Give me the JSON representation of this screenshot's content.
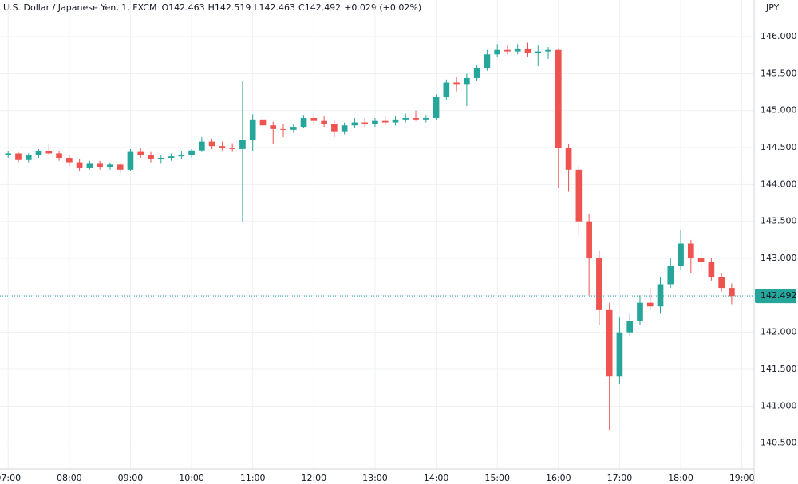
{
  "chart_data": {
    "type": "candlestick",
    "title": "U.S. Dollar / Japanese Yen, 1, FXCM",
    "ohlc_legend": [
      "O142.463",
      "H142.519",
      "L142.463",
      "C142.492",
      "+0.029 (+0.02%)"
    ],
    "currency": "JPY",
    "last_price": {
      "value": 142.492,
      "label": "142.492"
    },
    "up_color": "#26a69a",
    "down_color": "#ef5350",
    "xlim": [
      412,
      1152
    ],
    "xticks": [
      {
        "value": 420,
        "label": "07:00"
      },
      {
        "value": 480,
        "label": "08:00"
      },
      {
        "value": 540,
        "label": "09:00"
      },
      {
        "value": 600,
        "label": "10:00"
      },
      {
        "value": 660,
        "label": "11:00"
      },
      {
        "value": 720,
        "label": "12:00"
      },
      {
        "value": 780,
        "label": "13:00"
      },
      {
        "value": 840,
        "label": "14:00"
      },
      {
        "value": 900,
        "label": "15:00"
      },
      {
        "value": 960,
        "label": "16:00"
      },
      {
        "value": 1020,
        "label": "17:00"
      },
      {
        "value": 1080,
        "label": "18:00"
      },
      {
        "value": 1140,
        "label": "19:00"
      }
    ],
    "ylim": [
      140.151,
      146.497
    ],
    "yticks": [
      {
        "value": 140.5,
        "label": "140.500"
      },
      {
        "value": 141,
        "label": "141.000"
      },
      {
        "value": 141.5,
        "label": "141.500"
      },
      {
        "value": 142,
        "label": "142.000"
      },
      {
        "value": 142.5,
        "label": "142.500"
      },
      {
        "value": 143,
        "label": "143.000"
      },
      {
        "value": 143.5,
        "label": "143.500"
      },
      {
        "value": 144,
        "label": "144.000"
      },
      {
        "value": 144.5,
        "label": "144.500"
      },
      {
        "value": 145,
        "label": "145.000"
      },
      {
        "value": 145.5,
        "label": "145.500"
      },
      {
        "value": 146,
        "label": "146.000"
      }
    ],
    "grid": true,
    "x": [
      420,
      430,
      440,
      450,
      460,
      470,
      480,
      490,
      500,
      510,
      520,
      530,
      540,
      550,
      560,
      570,
      580,
      590,
      600,
      610,
      620,
      630,
      640,
      650,
      660,
      670,
      680,
      690,
      700,
      710,
      720,
      730,
      740,
      750,
      760,
      770,
      780,
      790,
      800,
      810,
      820,
      830,
      840,
      850,
      860,
      870,
      880,
      890,
      900,
      910,
      920,
      930,
      940,
      950,
      960,
      970,
      980,
      990,
      1000,
      1010,
      1020,
      1030,
      1040,
      1050,
      1060,
      1070,
      1080,
      1090,
      1100,
      1110,
      1120,
      1130
    ],
    "open": [
      144.4,
      144.42,
      144.33,
      144.4,
      144.45,
      144.42,
      144.36,
      144.3,
      144.22,
      144.28,
      144.24,
      144.27,
      144.2,
      144.44,
      144.4,
      144.34,
      144.36,
      144.38,
      144.4,
      144.46,
      144.58,
      144.52,
      144.5,
      144.48,
      144.6,
      144.88,
      144.8,
      144.75,
      144.74,
      144.78,
      144.9,
      144.86,
      144.82,
      144.72,
      144.8,
      144.84,
      144.82,
      144.86,
      144.84,
      144.88,
      144.9,
      144.88,
      144.9,
      145.18,
      145.38,
      145.36,
      145.44,
      145.58,
      145.76,
      145.82,
      145.8,
      145.84,
      145.78,
      145.8,
      145.82,
      144.5,
      144.2,
      143.5,
      143.0,
      142.3,
      141.4,
      142.0,
      142.15,
      142.4,
      142.35,
      142.65,
      142.9,
      143.2,
      143.0,
      142.95,
      142.75,
      142.6
    ],
    "high": [
      144.45,
      144.44,
      144.42,
      144.48,
      144.55,
      144.45,
      144.4,
      144.34,
      144.32,
      144.32,
      144.3,
      144.3,
      144.48,
      144.5,
      144.44,
      144.4,
      144.42,
      144.45,
      144.48,
      144.64,
      144.62,
      144.58,
      144.56,
      145.4,
      144.95,
      144.96,
      144.85,
      144.82,
      144.82,
      144.94,
      144.96,
      144.92,
      144.86,
      144.84,
      144.9,
      144.9,
      144.9,
      144.92,
      144.92,
      144.96,
      145.0,
      144.94,
      145.22,
      145.42,
      145.46,
      145.5,
      145.62,
      145.82,
      145.9,
      145.88,
      145.9,
      145.92,
      145.88,
      145.86,
      145.84,
      144.55,
      144.25,
      143.6,
      143.1,
      142.4,
      142.2,
      142.25,
      142.5,
      142.6,
      142.75,
      143.0,
      143.38,
      143.25,
      143.1,
      143.0,
      142.8,
      142.66
    ],
    "low": [
      144.36,
      144.3,
      144.3,
      144.36,
      144.4,
      144.32,
      144.25,
      144.18,
      144.2,
      144.2,
      144.2,
      144.15,
      144.18,
      144.36,
      144.3,
      144.28,
      144.32,
      144.34,
      144.36,
      144.44,
      144.48,
      144.46,
      144.44,
      143.5,
      144.45,
      144.72,
      144.55,
      144.64,
      144.7,
      144.76,
      144.8,
      144.78,
      144.64,
      144.68,
      144.76,
      144.78,
      144.78,
      144.8,
      144.8,
      144.84,
      144.86,
      144.84,
      144.88,
      145.14,
      145.26,
      145.06,
      145.4,
      145.54,
      145.72,
      145.76,
      145.76,
      145.72,
      145.6,
      145.7,
      143.95,
      143.9,
      143.3,
      142.5,
      142.1,
      140.68,
      141.3,
      141.95,
      142.1,
      142.3,
      142.25,
      142.6,
      142.85,
      142.8,
      142.85,
      142.7,
      142.55,
      142.38
    ],
    "close": [
      144.42,
      144.33,
      144.4,
      144.45,
      144.42,
      144.36,
      144.3,
      144.22,
      144.28,
      144.24,
      144.27,
      144.2,
      144.44,
      144.4,
      144.34,
      144.36,
      144.38,
      144.4,
      144.46,
      144.58,
      144.52,
      144.5,
      144.48,
      144.6,
      144.88,
      144.8,
      144.75,
      144.74,
      144.78,
      144.9,
      144.86,
      144.82,
      144.72,
      144.8,
      144.84,
      144.82,
      144.86,
      144.84,
      144.88,
      144.9,
      144.88,
      144.9,
      145.18,
      145.38,
      145.36,
      145.44,
      145.58,
      145.76,
      145.82,
      145.8,
      145.84,
      145.78,
      145.8,
      145.82,
      144.5,
      144.2,
      143.5,
      143.0,
      142.3,
      141.4,
      142.0,
      142.15,
      142.4,
      142.35,
      142.65,
      142.9,
      143.2,
      143.0,
      142.95,
      142.75,
      142.6,
      142.49
    ]
  }
}
